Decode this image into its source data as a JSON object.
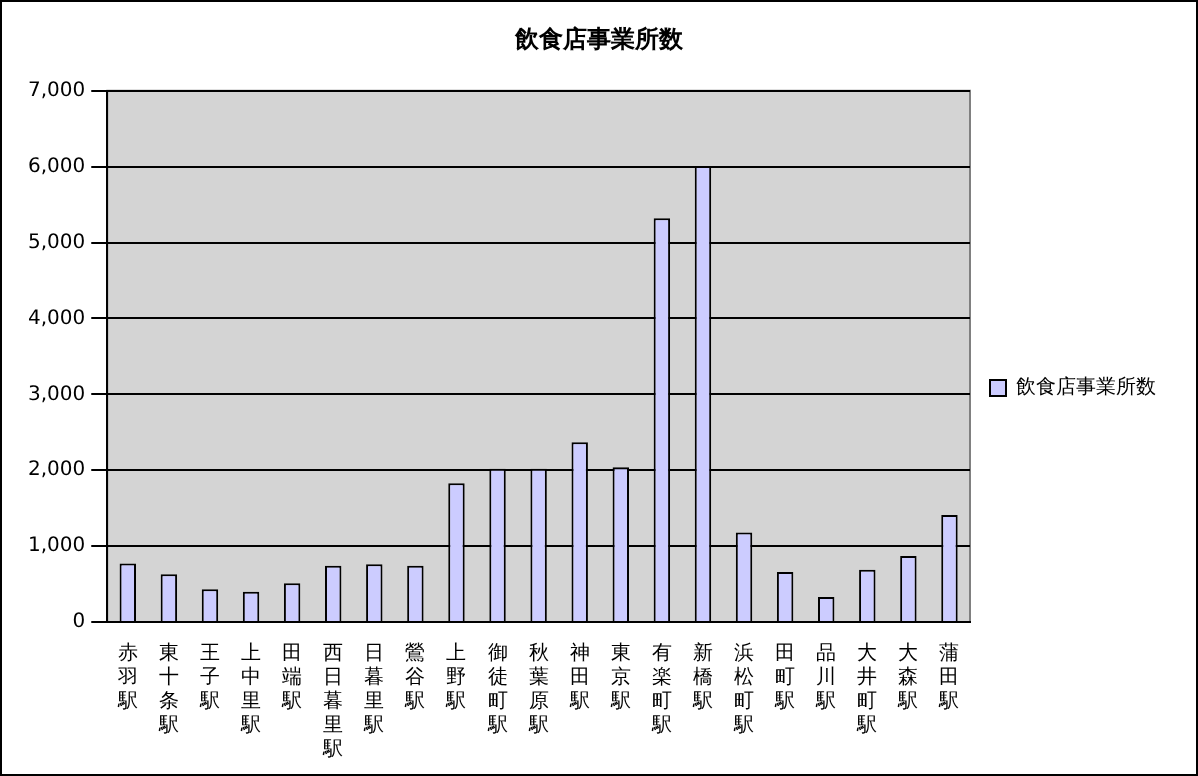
{
  "chart_data": {
    "type": "bar",
    "title": "飲食店事業所数",
    "categories": [
      "赤羽駅",
      "東十条駅",
      "王子駅",
      "上中里駅",
      "田端駅",
      "西日暮里駅",
      "日暮里駅",
      "鶯谷駅",
      "上野駅",
      "御徒町駅",
      "秋葉原駅",
      "神田駅",
      "東京駅",
      "有楽町駅",
      "新橋駅",
      "浜松町駅",
      "田町駅",
      "品川駅",
      "大井町駅",
      "大森駅",
      "蒲田駅"
    ],
    "series": [
      {
        "name": "飲食店事業所数",
        "color": "#ccccff",
        "values": [
          770,
          630,
          430,
          400,
          510,
          740,
          760,
          740,
          1830,
          2020,
          2020,
          2370,
          2040,
          5320,
          6010,
          1180,
          660,
          330,
          690,
          870,
          1410
        ]
      }
    ],
    "ylim": [
      0,
      7000
    ],
    "yticks": [
      {
        "value": 0,
        "label": "0"
      },
      {
        "value": 1000,
        "label": "1,000"
      },
      {
        "value": 2000,
        "label": "2,000"
      },
      {
        "value": 3000,
        "label": "3,000"
      },
      {
        "value": 4000,
        "label": "4,000"
      },
      {
        "value": 5000,
        "label": "5,000"
      },
      {
        "value": 6000,
        "label": "6,000"
      },
      {
        "value": 7000,
        "label": "7,000"
      }
    ],
    "grid": "y",
    "legend": "right"
  }
}
